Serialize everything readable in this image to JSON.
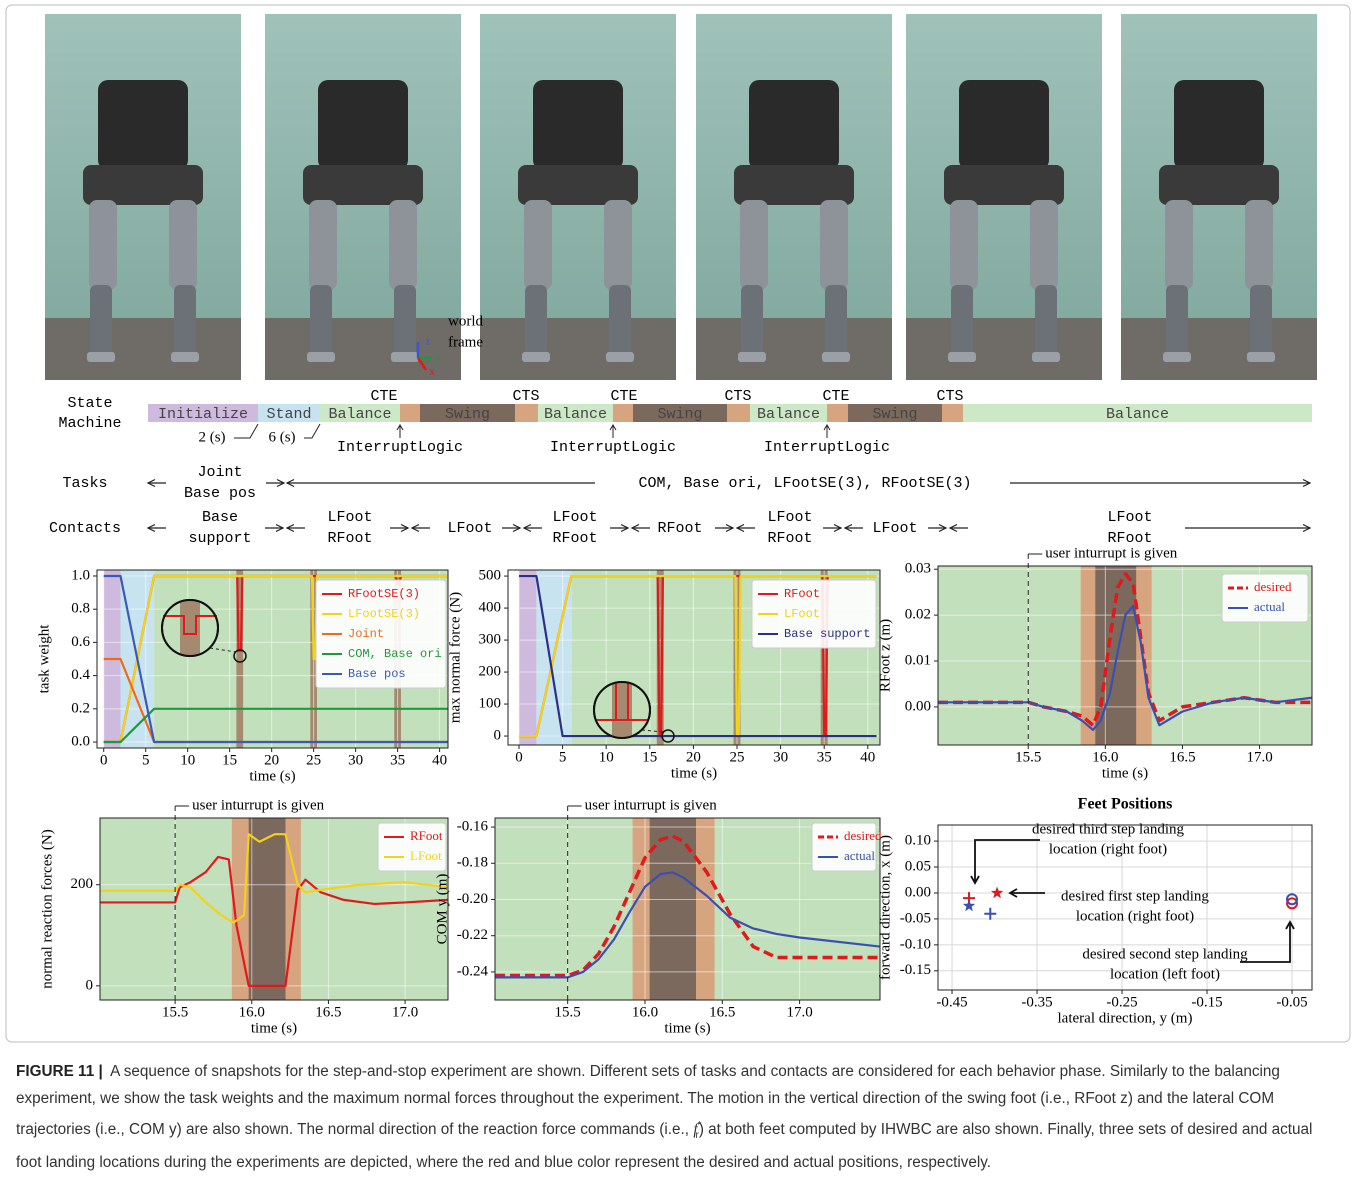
{
  "photos": {
    "annotation": [
      "world",
      "frame"
    ],
    "frame_axes": [
      "z",
      "y",
      "x"
    ]
  },
  "state_machine": {
    "label": [
      "State",
      "Machine"
    ],
    "phases": [
      "Initialize",
      "Stand",
      "Balance",
      "Swing",
      "Balance",
      "Swing",
      "Balance",
      "Swing",
      "Balance"
    ],
    "transitions": [
      "CTE",
      "CTS",
      "CTE",
      "CTS",
      "CTE",
      "CTS"
    ],
    "durations": [
      "2 (s)",
      "6 (s)"
    ],
    "interrupts": [
      "InterruptLogic",
      "InterruptLogic",
      "InterruptLogic"
    ]
  },
  "tasks": {
    "label": "Tasks",
    "groups": [
      [
        "Joint",
        "Base pos"
      ],
      [
        "COM, Base ori, LFootSE(3), RFootSE(3)"
      ]
    ]
  },
  "contacts": {
    "label": "Contacts",
    "groups": [
      [
        "Base",
        "support"
      ],
      [
        "LFoot",
        "RFoot"
      ],
      [
        "LFoot"
      ],
      [
        "LFoot",
        "RFoot"
      ],
      [
        "RFoot"
      ],
      [
        "LFoot",
        "RFoot"
      ],
      [
        "LFoot"
      ],
      [
        "LFoot",
        "RFoot"
      ]
    ]
  },
  "chart_data": [
    {
      "type": "line",
      "xlabel": "time (s)",
      "ylabel": "task weight",
      "xlim": [
        -0.8,
        41
      ],
      "ylim": [
        -0.036,
        1.036
      ],
      "xticks": [
        0,
        5,
        10,
        15,
        20,
        25,
        30,
        35,
        40
      ],
      "yticks": [
        {
          "value": 0,
          "label": "0.0"
        },
        0.2,
        0.4,
        0.6,
        0.8,
        {
          "value": 1,
          "label": "1.0"
        }
      ],
      "grid": true,
      "legend": "upper right",
      "regions": [
        {
          "x": [
            0,
            2
          ],
          "color": "#cdbadc"
        },
        {
          "x": [
            2,
            6
          ],
          "color": "#c6e3ef"
        },
        {
          "x": [
            6,
            41
          ],
          "color": "#c2e0bb"
        },
        {
          "x": [
            15.8,
            16.6
          ],
          "color": "#a58a70"
        },
        {
          "x": [
            24.6,
            25.4
          ],
          "color": "#a58a70"
        },
        {
          "x": [
            34.6,
            35.4
          ],
          "color": "#a58a70"
        }
      ],
      "series": [
        {
          "name": "RFootSE(3)",
          "color": "#e0191c",
          "x": [
            0,
            2,
            6,
            15.9,
            16.05,
            16.35,
            16.5,
            34.8,
            35,
            35.2,
            35.4,
            41
          ],
          "values": [
            0,
            0,
            1,
            1,
            0.55,
            0.55,
            1,
            1,
            0.95,
            0.95,
            1,
            1
          ]
        },
        {
          "name": "LFootSE(3)",
          "color": "#f2d21b",
          "x": [
            0,
            2,
            6,
            24.8,
            25,
            25.2,
            25.4,
            41
          ],
          "values": [
            0,
            0,
            1,
            1,
            0.5,
            0.5,
            1,
            1
          ]
        },
        {
          "name": "Joint",
          "color": "#ef6b1c",
          "x": [
            0,
            2,
            6,
            41
          ],
          "values": [
            0.5,
            0.5,
            0,
            0
          ]
        },
        {
          "name": "COM, Base ori",
          "color": "#1f9a3a",
          "x": [
            0,
            2,
            6,
            41
          ],
          "values": [
            0,
            0,
            0.2,
            0.2
          ]
        },
        {
          "name": "Base pos",
          "color": "#3a5bb5",
          "x": [
            0,
            2,
            6,
            41
          ],
          "values": [
            1,
            1,
            0,
            0
          ]
        }
      ]
    },
    {
      "type": "line",
      "xlabel": "time (s)",
      "ylabel": "max normal force (N)",
      "xlim": [
        -1.26,
        41.4
      ],
      "ylim": [
        -28,
        519
      ],
      "xticks": [
        0,
        5,
        10,
        15,
        20,
        25,
        30,
        35,
        40
      ],
      "yticks": [
        0,
        100,
        200,
        300,
        400,
        500
      ],
      "grid": true,
      "legend": "upper right",
      "regions": [
        {
          "x": [
            0,
            2
          ],
          "color": "#cdbadc"
        },
        {
          "x": [
            2,
            6
          ],
          "color": "#c6e3ef"
        },
        {
          "x": [
            6,
            41.4
          ],
          "color": "#c2e0bb"
        },
        {
          "x": [
            15.8,
            16.6
          ],
          "color": "#a58a70"
        },
        {
          "x": [
            24.6,
            25.4
          ],
          "color": "#a58a70"
        },
        {
          "x": [
            34.6,
            35.4
          ],
          "color": "#a58a70"
        }
      ],
      "series": [
        {
          "name": "RFoot",
          "color": "#e0191c",
          "x": [
            0,
            2,
            6,
            15.9,
            16.1,
            16.3,
            16.5,
            34.8,
            35,
            35.2,
            35.4,
            41
          ],
          "values": [
            0,
            0,
            500,
            500,
            0,
            0,
            500,
            500,
            0,
            0,
            500,
            500
          ]
        },
        {
          "name": "LFoot",
          "color": "#f2d21b",
          "x": [
            0,
            2,
            6,
            24.8,
            25,
            25.2,
            25.4,
            41
          ],
          "values": [
            0,
            0,
            500,
            500,
            0,
            0,
            500,
            500
          ]
        },
        {
          "name": "Base support",
          "color": "#2b2f8a",
          "x": [
            0,
            2,
            5,
            41
          ],
          "values": [
            500,
            500,
            0,
            0
          ]
        }
      ]
    },
    {
      "type": "line",
      "xlabel": "time (s)",
      "ylabel": "RFoot z (m)",
      "xlim": [
        14.915,
        17.34
      ],
      "ylim": [
        -0.0083,
        0.0307
      ],
      "xticks": [
        15.5,
        {
          "value": 16,
          "label": "16.0"
        },
        16.5,
        {
          "value": 17,
          "label": "17.0"
        }
      ],
      "yticks": [
        {
          "value": 0,
          "label": "0.00"
        },
        0.01,
        0.02,
        0.03
      ],
      "grid": true,
      "legend": "upper right",
      "annotation": {
        "text": "user inturrupt is given",
        "x": 15.5
      },
      "regions": [
        {
          "x": [
            14.915,
            17.34
          ],
          "color": "#c2e0bb"
        },
        {
          "x": [
            15.84,
            16.3
          ],
          "color": "#d6a47e"
        },
        {
          "x": [
            15.935,
            16.2
          ],
          "color": "#7c695d"
        }
      ],
      "series": [
        {
          "name": "desired",
          "color": "#e0191c",
          "dash": true,
          "x": [
            14.915,
            15.5,
            15.6,
            15.75,
            15.85,
            15.92,
            15.97,
            16.03,
            16.08,
            16.13,
            16.18,
            16.23,
            16.28,
            16.35,
            16.5,
            16.7,
            16.9,
            17.1,
            17.34
          ],
          "values": [
            0.001,
            0.001,
            0,
            -0.001,
            -0.002,
            -0.004,
            0,
            0.015,
            0.026,
            0.029,
            0.027,
            0.015,
            0.003,
            -0.003,
            0,
            0.001,
            0.002,
            0.001,
            0.001
          ]
        },
        {
          "name": "actual",
          "color": "#3a4fb0",
          "x": [
            14.915,
            15.5,
            15.6,
            15.75,
            15.85,
            15.92,
            15.97,
            16.03,
            16.08,
            16.13,
            16.18,
            16.23,
            16.28,
            16.35,
            16.5,
            16.7,
            16.9,
            17.1,
            17.34
          ],
          "values": [
            0.001,
            0.001,
            0,
            -0.001,
            -0.003,
            -0.005,
            -0.003,
            0.003,
            0.012,
            0.02,
            0.022,
            0.014,
            0.002,
            -0.004,
            -0.001,
            0.001,
            0.002,
            0.001,
            0.002
          ]
        }
      ]
    },
    {
      "type": "line",
      "xlabel": "time (s)",
      "ylabel": "normal reaction forces  (N)",
      "xlim": [
        15.01,
        17.28
      ],
      "ylim": [
        -28,
        332
      ],
      "xticks": [
        15.5,
        {
          "value": 16,
          "label": "16.0"
        },
        16.5,
        {
          "value": 17,
          "label": "17.0"
        }
      ],
      "yticks": [
        0,
        200
      ],
      "grid": true,
      "legend": "upper right",
      "annotation": {
        "text": "user inturrupt is given",
        "x": 15.5
      },
      "regions": [
        {
          "x": [
            15.01,
            17.28
          ],
          "color": "#c2e0bb"
        },
        {
          "x": [
            15.87,
            16.32
          ],
          "color": "#d6a47e"
        },
        {
          "x": [
            15.98,
            16.22
          ],
          "color": "#7c695d"
        }
      ],
      "series": [
        {
          "name": "RFoot",
          "color": "#e0191c",
          "x": [
            15.01,
            15.5,
            15.53,
            15.6,
            15.7,
            15.78,
            15.85,
            15.9,
            15.98,
            16.22,
            16.3,
            16.35,
            16.45,
            16.6,
            16.8,
            17,
            17.28
          ],
          "values": [
            165,
            165,
            195,
            205,
            225,
            255,
            250,
            120,
            0,
            0,
            190,
            210,
            185,
            170,
            162,
            165,
            170
          ]
        },
        {
          "name": "LFoot",
          "color": "#f2d21b",
          "x": [
            15.01,
            15.5,
            15.53,
            15.6,
            15.7,
            15.8,
            15.88,
            15.95,
            15.98,
            16.05,
            16.15,
            16.22,
            16.3,
            16.35,
            16.45,
            16.7,
            17,
            17.28
          ],
          "values": [
            188,
            188,
            200,
            195,
            165,
            140,
            125,
            140,
            300,
            285,
            300,
            300,
            200,
            185,
            190,
            200,
            205,
            195
          ]
        }
      ]
    },
    {
      "type": "line",
      "xlabel": "time (s)",
      "ylabel": "COM y (m)",
      "xlim": [
        15.03,
        17.52
      ],
      "ylim": [
        -0.2555,
        -0.155
      ],
      "xticks": [
        15.5,
        {
          "value": 16,
          "label": "16.0"
        },
        16.5,
        {
          "value": 17,
          "label": "17.0"
        }
      ],
      "yticks": [
        -0.24,
        -0.22,
        {
          "value": -0.2,
          "label": "-0.20"
        },
        -0.18,
        -0.16
      ],
      "grid": true,
      "legend": "upper right",
      "annotation": {
        "text": "user inturrupt is given",
        "x": 15.5
      },
      "regions": [
        {
          "x": [
            15.03,
            17.52
          ],
          "color": "#c2e0bb"
        },
        {
          "x": [
            15.92,
            16.45
          ],
          "color": "#d6a47e"
        },
        {
          "x": [
            16.03,
            16.33
          ],
          "color": "#7c695d"
        }
      ],
      "series": [
        {
          "name": "desired",
          "color": "#e0191c",
          "dash": true,
          "x": [
            15.03,
            15.5,
            15.6,
            15.7,
            15.8,
            15.9,
            16,
            16.1,
            16.18,
            16.25,
            16.4,
            16.55,
            16.7,
            16.85,
            17,
            17.52
          ],
          "values": [
            -0.242,
            -0.242,
            -0.239,
            -0.23,
            -0.215,
            -0.196,
            -0.177,
            -0.167,
            -0.165,
            -0.168,
            -0.185,
            -0.208,
            -0.226,
            -0.232,
            -0.232,
            -0.232
          ]
        },
        {
          "name": "actual",
          "color": "#3a4fb0",
          "x": [
            15.03,
            15.5,
            15.6,
            15.7,
            15.8,
            15.9,
            16,
            16.1,
            16.18,
            16.25,
            16.4,
            16.55,
            16.7,
            16.85,
            17,
            17.52
          ],
          "values": [
            -0.243,
            -0.243,
            -0.24,
            -0.233,
            -0.222,
            -0.207,
            -0.193,
            -0.186,
            -0.185,
            -0.188,
            -0.198,
            -0.21,
            -0.216,
            -0.219,
            -0.221,
            -0.226
          ]
        }
      ]
    },
    {
      "type": "scatter",
      "title": "Feet Positions",
      "xlabel": "lateral direction, y (m)",
      "ylabel": "forward direction, x (m)",
      "xlim": [
        -0.4665,
        -0.0265
      ],
      "ylim": [
        -0.187,
        0.131
      ],
      "xticks": [
        -0.45,
        -0.35,
        -0.25,
        -0.15,
        -0.05
      ],
      "yticks": [
        {
          "value": 0.1,
          "label": "0.10"
        },
        0.05,
        {
          "value": 0,
          "label": "0.00"
        },
        -0.05,
        {
          "value": -0.1,
          "label": "-0.10"
        },
        -0.15
      ],
      "grid": true,
      "annotations": [
        {
          "lines": [
            "desired third step landing",
            "location (right foot)"
          ]
        },
        {
          "lines": [
            "desired first step landing",
            "location (right foot)"
          ]
        },
        {
          "lines": [
            "desired second step landing",
            "location (left foot)"
          ]
        }
      ],
      "series": [
        {
          "color": "#e0191c",
          "markers": [
            "+",
            "*",
            "o"
          ],
          "x": [
            -0.43,
            -0.397,
            -0.05
          ],
          "values": [
            -0.01,
            0,
            -0.02
          ]
        },
        {
          "color": "#3a4fb0",
          "markers": [
            "*",
            "+",
            "o"
          ],
          "x": [
            -0.43,
            -0.405,
            -0.05
          ],
          "values": [
            -0.025,
            -0.04,
            -0.012
          ]
        }
      ]
    }
  ],
  "caption": {
    "label": "FIGURE 11 |",
    "text1": "A sequence of snapshots for the step-and-stop experiment are shown. Different sets of tasks and contacts are considered for each behavior phase. Similarly to the balancing experiment, we show the task weights and the maximum normal forces throughout the experiment. The motion in the vertical direction of the swing foot (i.e., RFoot z) and the lateral COM trajectories (i.e., COM y) are also shown. The normal direction of the reaction force commands (i.e.,",
    "math": "f",
    "sup": "*",
    "sub": "r",
    "text2": ") at both feet computed by IHWBC are also shown. Finally, three sets of desired and actual foot landing locations during the experiments are depicted, where the red and blue color represent the desired and actual positions, respectively."
  }
}
